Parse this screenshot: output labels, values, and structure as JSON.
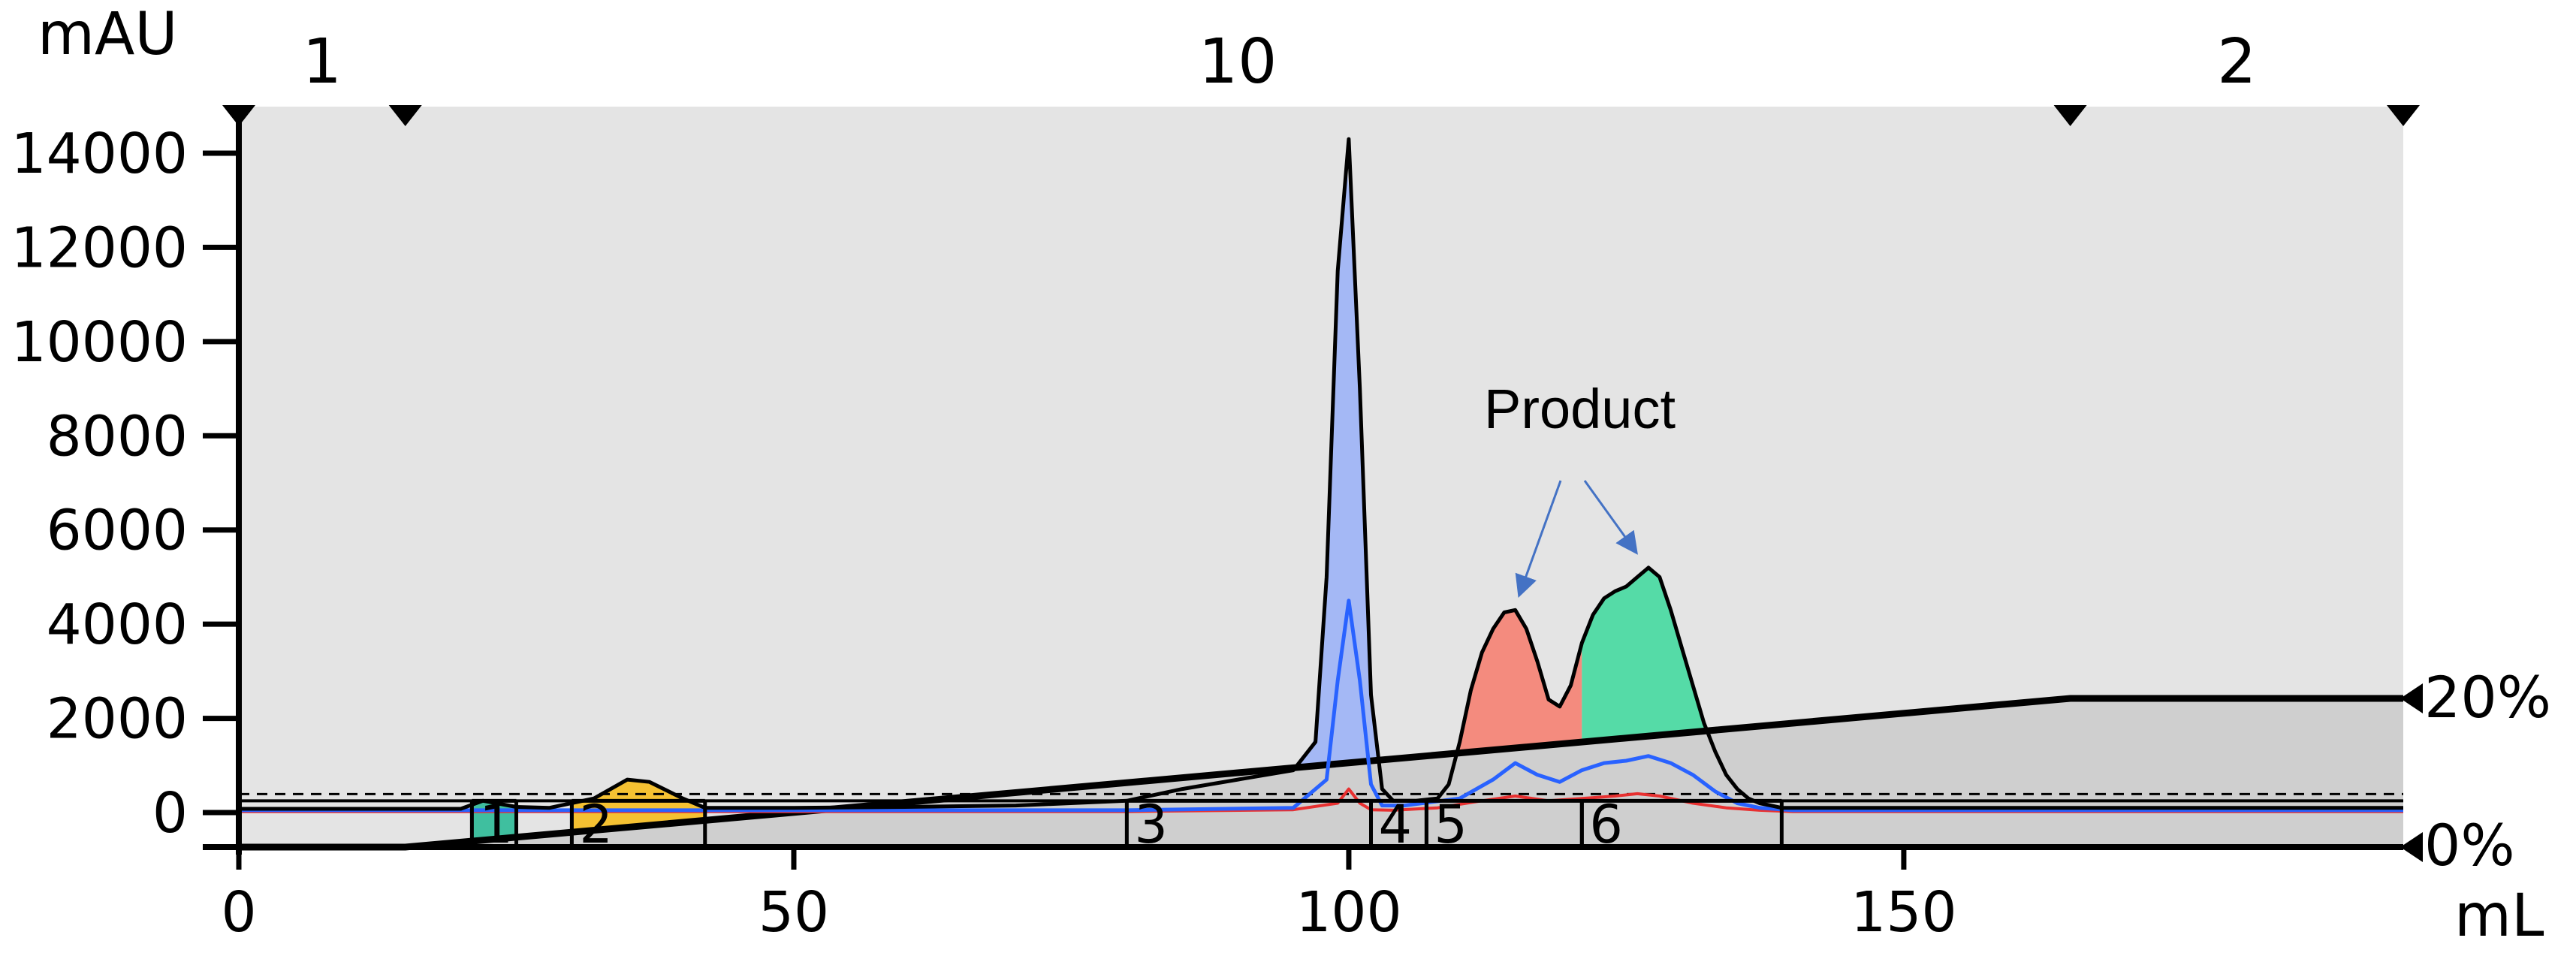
{
  "chart_data": {
    "type": "area",
    "y_unit": "mAU",
    "x_unit": "mL",
    "xlim": [
      0,
      195
    ],
    "ylim": [
      -700,
      15000
    ],
    "x_ticks": [
      "0",
      "50",
      "100",
      "150"
    ],
    "y_ticks": [
      "0",
      "2000",
      "4000",
      "6000",
      "8000",
      "10000",
      "12000",
      "14000"
    ],
    "phases": [
      {
        "label": "1",
        "start": 0,
        "end": 15
      },
      {
        "label": "10",
        "start": 15,
        "end": 165
      },
      {
        "label": "2",
        "start": 165,
        "end": 195
      }
    ],
    "fractions": [
      {
        "label": "1",
        "start": 21,
        "end": 25,
        "color": "#3fbf9f"
      },
      {
        "label": "2",
        "start": 30,
        "end": 42,
        "color": "#f5c132"
      },
      {
        "label": "3",
        "start": 80,
        "end": 102,
        "color": "#a4b8f5"
      },
      {
        "label": "4",
        "start": 102,
        "end": 107,
        "color": "#a4b8f5"
      },
      {
        "label": "5",
        "start": 107,
        "end": 121,
        "color": "#f48b7e"
      },
      {
        "label": "6",
        "start": 121,
        "end": 139,
        "color": "#55dba7"
      }
    ],
    "gradient": {
      "right_labels": [
        "20%",
        "0%"
      ],
      "points": [
        [
          0,
          0
        ],
        [
          15,
          0
        ],
        [
          165,
          20
        ],
        [
          195,
          20
        ]
      ]
    },
    "annotation": {
      "text": "Product",
      "x": 121,
      "y": 8500,
      "targets": [
        [
          115,
          4300
        ],
        [
          125,
          5200
        ]
      ]
    },
    "series": [
      {
        "color": "#000000",
        "x": [
          0,
          20,
          22,
          25,
          28,
          32,
          35,
          37,
          40,
          42,
          50,
          60,
          70,
          80,
          85,
          90,
          95,
          97,
          98,
          99,
          100,
          101,
          102,
          103,
          104,
          106,
          108,
          109,
          110,
          111,
          112,
          113,
          114,
          115,
          116,
          117,
          118,
          119,
          120,
          121,
          122,
          123,
          124,
          125,
          126,
          127,
          128,
          129,
          130,
          131,
          132,
          133,
          134,
          135,
          136,
          137,
          138,
          139,
          140,
          150,
          195
        ],
        "y": [
          80,
          80,
          250,
          120,
          100,
          300,
          700,
          650,
          300,
          100,
          100,
          120,
          150,
          250,
          500,
          700,
          900,
          1500,
          5000,
          11500,
          14300,
          9000,
          2500,
          500,
          250,
          250,
          300,
          600,
          1500,
          2600,
          3400,
          3900,
          4250,
          4300,
          3900,
          3200,
          2400,
          2250,
          2700,
          3600,
          4200,
          4550,
          4700,
          4800,
          5000,
          5200,
          5000,
          4300,
          3500,
          2700,
          1900,
          1300,
          800,
          500,
          300,
          200,
          150,
          100,
          100,
          100,
          100
        ]
      },
      {
        "color": "#2962ff",
        "x": [
          0,
          80,
          95,
          98,
          99,
          100,
          101,
          102,
          103,
          105,
          110,
          113,
          115,
          117,
          119,
          121,
          123,
          125,
          127,
          129,
          131,
          133,
          135,
          137,
          140,
          195
        ],
        "y": [
          50,
          50,
          100,
          700,
          2800,
          4500,
          2800,
          600,
          150,
          150,
          300,
          700,
          1050,
          800,
          650,
          900,
          1050,
          1100,
          1200,
          1050,
          800,
          450,
          200,
          100,
          50,
          50
        ]
      },
      {
        "color": "#e83030",
        "x": [
          0,
          80,
          95,
          99,
          100,
          101,
          102,
          104,
          108,
          112,
          115,
          118,
          121,
          124,
          126,
          128,
          131,
          134,
          137,
          140,
          195
        ],
        "y": [
          20,
          20,
          60,
          200,
          500,
          200,
          60,
          50,
          100,
          250,
          350,
          250,
          300,
          350,
          400,
          350,
          200,
          100,
          50,
          20,
          20
        ]
      }
    ],
    "reference_lines": [
      250
    ]
  }
}
